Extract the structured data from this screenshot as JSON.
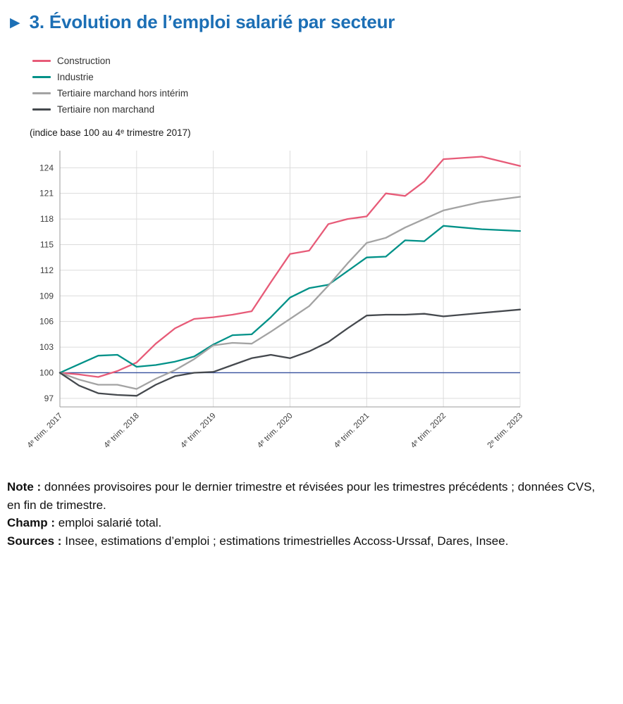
{
  "header": {
    "icon": "▶",
    "title": "3. Évolution de l’emploi salarié par secteur"
  },
  "chart_data": {
    "type": "line",
    "subtitle": "(indice base 100 au 4ᵉ trimestre 2017)",
    "grid": true,
    "legend_position": "top-left",
    "ylim": [
      96,
      126
    ],
    "y_ticks": [
      97,
      100,
      103,
      106,
      109,
      112,
      115,
      118,
      121,
      124
    ],
    "x_tick_labels": [
      "4ᵉ trim. 2017",
      "4ᵉ trim. 2018",
      "4ᵉ trim. 2019",
      "4ᵉ trim. 2020",
      "4ᵉ trim. 2021",
      "4ᵉ trim. 2022",
      "2ᵉ trim. 2023"
    ],
    "x_tick_indices": [
      0,
      4,
      8,
      12,
      16,
      20,
      22
    ],
    "categories": [
      "T4 2017",
      "T1 2018",
      "T2 2018",
      "T3 2018",
      "T4 2018",
      "T1 2019",
      "T2 2019",
      "T3 2019",
      "T4 2019",
      "T1 2020",
      "T2 2020",
      "T3 2020",
      "T4 2020",
      "T1 2021",
      "T2 2021",
      "T3 2021",
      "T4 2021",
      "T1 2022",
      "T2 2022",
      "T3 2022",
      "T4 2022",
      "T1 2023",
      "T2 2023"
    ],
    "baseline": {
      "value": 100,
      "color": "#37519e"
    },
    "series": [
      {
        "name": "Construction",
        "color": "#e75b78",
        "values": [
          100,
          99.8,
          99.5,
          100.2,
          101.2,
          103.4,
          105.2,
          106.3,
          106.5,
          106.8,
          107.2,
          110.6,
          113.9,
          114.3,
          117.4,
          118.0,
          118.3,
          121.0,
          120.7,
          122.4,
          125.0,
          125.3,
          124.2
        ]
      },
      {
        "name": "Industrie",
        "color": "#009188",
        "values": [
          100,
          101.0,
          102.0,
          102.1,
          100.7,
          100.9,
          101.3,
          101.9,
          103.3,
          104.4,
          104.5,
          106.5,
          108.8,
          109.9,
          110.3,
          111.9,
          113.5,
          113.6,
          115.5,
          115.4,
          117.2,
          116.8,
          116.6
        ]
      },
      {
        "name": "Tertiaire marchand hors intérim",
        "color": "#a3a3a3",
        "values": [
          100,
          99.2,
          98.6,
          98.6,
          98.1,
          99.3,
          100.3,
          101.6,
          103.2,
          103.5,
          103.4,
          104.8,
          106.3,
          107.8,
          110.2,
          112.8,
          115.2,
          115.8,
          117.0,
          118.0,
          119.0,
          120.0,
          120.6
        ]
      },
      {
        "name": "Tertiaire non marchand",
        "color": "#45494e",
        "values": [
          100,
          98.5,
          97.6,
          97.4,
          97.3,
          98.6,
          99.6,
          100.0,
          100.1,
          100.9,
          101.7,
          102.1,
          101.7,
          102.5,
          103.6,
          105.2,
          106.7,
          106.8,
          106.8,
          106.9,
          106.6,
          107.0,
          107.4
        ]
      }
    ]
  },
  "notes": [
    {
      "label": "Note :",
      "text": "données provisoires pour le dernier trimestre et révisées pour les trimestres précédents ; données CVS, en fin de trimestre."
    },
    {
      "label": "Champ :",
      "text": "emploi salarié total."
    },
    {
      "label": "Sources :",
      "text": "Insee, estimations d’emploi ; estimations trimestrielles Accoss-Urssaf, Dares, Insee."
    }
  ]
}
